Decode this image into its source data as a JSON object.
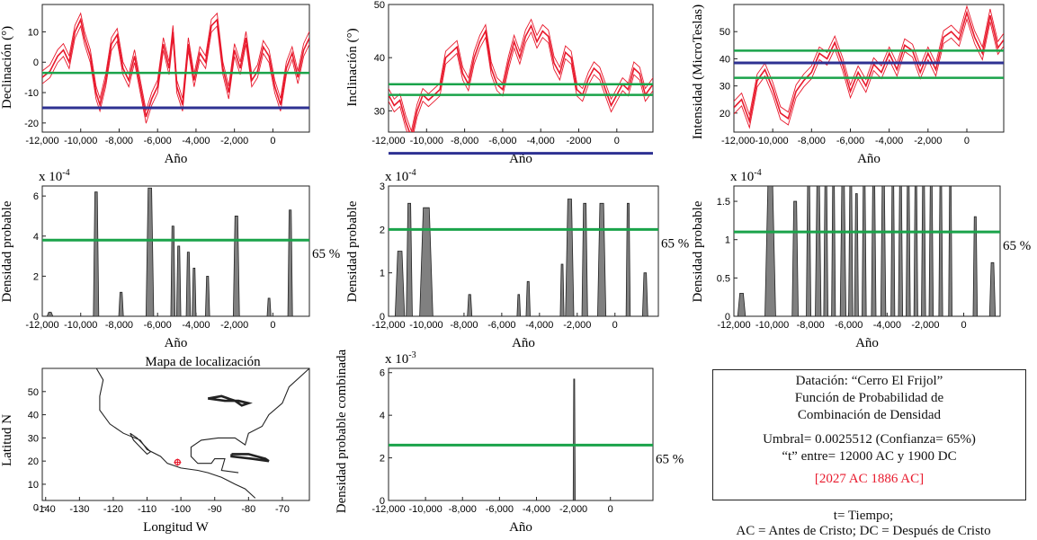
{
  "colors": {
    "red": "#e8192c",
    "green": "#1aa34a",
    "blue": "#2e3192",
    "gray": "#808080",
    "black": "#111111"
  },
  "xlabel": "Año",
  "chart_data": [
    {
      "id": "declinacion",
      "type": "line",
      "title": "",
      "xlabel": "Año",
      "ylabel": "Declinación (°)",
      "xlim": [
        -12000,
        1900
      ],
      "ylim": [
        -23,
        19
      ],
      "xticks": [
        -12000,
        -10000,
        -8000,
        -6000,
        -4000,
        -2000,
        0
      ],
      "xtick_labels": [
        "-12,000",
        "-10,000",
        "-8,000",
        "-6,000",
        "-4,000",
        "-2,000",
        "0"
      ],
      "yticks": [
        -20,
        -10,
        0,
        10
      ],
      "ytick_labels": [
        "-20",
        "-10",
        "0",
        "10"
      ],
      "hlines": [
        {
          "y": -3.5,
          "color": "green"
        },
        {
          "y": -15,
          "color": "blue"
        }
      ],
      "series": [
        {
          "name": "curva",
          "x": [
            -12000,
            -11600,
            -11200,
            -10900,
            -10600,
            -10300,
            -10000,
            -9800,
            -9500,
            -9200,
            -9000,
            -8700,
            -8400,
            -8100,
            -7800,
            -7500,
            -7200,
            -6900,
            -6600,
            -6300,
            -6000,
            -5700,
            -5400,
            -5200,
            -5000,
            -4700,
            -4400,
            -4100,
            -3800,
            -3500,
            -3200,
            -2900,
            -2600,
            -2300,
            -2000,
            -1700,
            -1400,
            -1100,
            -800,
            -500,
            -200,
            100,
            400,
            700,
            1000,
            1300,
            1600,
            1900
          ],
          "y": [
            -5,
            -3,
            2,
            4,
            0,
            10,
            14,
            8,
            2,
            -10,
            -14,
            -6,
            6,
            9,
            -2,
            -6,
            2,
            -8,
            -18,
            -12,
            -8,
            6,
            -2,
            10,
            -8,
            -14,
            6,
            -6,
            3,
            0,
            12,
            14,
            -2,
            -10,
            4,
            -2,
            8,
            -6,
            -3,
            5,
            2,
            -8,
            -14,
            -2,
            3,
            -5,
            4,
            8
          ]
        }
      ]
    },
    {
      "id": "inclinacion",
      "type": "line",
      "title": "",
      "xlabel": "Año",
      "ylabel": "Inclinación (°)",
      "xlim": [
        -12000,
        1900
      ],
      "ylim": [
        26,
        50
      ],
      "xticks": [
        -12000,
        -10000,
        -8000,
        -6000,
        -4000,
        -2000,
        0
      ],
      "xtick_labels": [
        "-12,000",
        "-10,000",
        "-8,000",
        "-6,000",
        "-4,000",
        "-2000",
        "0"
      ],
      "yticks": [
        30,
        40,
        50
      ],
      "ytick_labels": [
        "30",
        "40",
        "50"
      ],
      "hlines": [
        {
          "y": 35,
          "color": "green"
        },
        {
          "y": 22,
          "color": "blue"
        },
        {
          "y": 33,
          "color": "green"
        }
      ],
      "series": [
        {
          "name": "curva",
          "x": [
            -12000,
            -11700,
            -11400,
            -11100,
            -10800,
            -10500,
            -10200,
            -9900,
            -9600,
            -9300,
            -9000,
            -8700,
            -8400,
            -8100,
            -7800,
            -7500,
            -7200,
            -6900,
            -6600,
            -6300,
            -6000,
            -5700,
            -5400,
            -5100,
            -4800,
            -4500,
            -4200,
            -3900,
            -3600,
            -3300,
            -3000,
            -2700,
            -2400,
            -2100,
            -1800,
            -1500,
            -1200,
            -900,
            -600,
            -300,
            0,
            300,
            600,
            900,
            1200,
            1500,
            1900
          ],
          "y": [
            33,
            31,
            32,
            28,
            25,
            30,
            33,
            32,
            33,
            34,
            40,
            41,
            42,
            37,
            35,
            40,
            43,
            45,
            38,
            35,
            34,
            39,
            43,
            40,
            44,
            46,
            43,
            45,
            44,
            39,
            37,
            41,
            40,
            34,
            33,
            36,
            38,
            37,
            34,
            31,
            33,
            35,
            34,
            38,
            37,
            33,
            35
          ]
        }
      ]
    },
    {
      "id": "intensidad",
      "type": "line",
      "title": "",
      "xlabel": "Año",
      "ylabel": "Intensidad (MicroTeslas)",
      "xlim": [
        -12000,
        1900
      ],
      "ylim": [
        13,
        60
      ],
      "xticks": [
        -12000,
        -10000,
        -8000,
        -6000,
        -4000,
        -2000,
        0
      ],
      "xtick_labels": [
        "-12,000-10,000",
        "",
        "-8,000",
        "-6,000",
        "-4,000",
        "-2,000",
        "0"
      ],
      "yticks": [
        20,
        30,
        40,
        50
      ],
      "ytick_labels": [
        "20",
        "30",
        "40",
        "50"
      ],
      "hlines": [
        {
          "y": 43,
          "color": "green"
        },
        {
          "y": 38.5,
          "color": "blue"
        },
        {
          "y": 33,
          "color": "green"
        }
      ],
      "series": [
        {
          "name": "curva",
          "x": [
            -12000,
            -11600,
            -11200,
            -10800,
            -10400,
            -10000,
            -9600,
            -9200,
            -8800,
            -8400,
            -8000,
            -7600,
            -7200,
            -6800,
            -6400,
            -6000,
            -5600,
            -5200,
            -4800,
            -4400,
            -4000,
            -3600,
            -3200,
            -2800,
            -2400,
            -2000,
            -1600,
            -1200,
            -800,
            -400,
            0,
            400,
            800,
            1200,
            1600,
            1900
          ],
          "y": [
            22,
            25,
            17,
            32,
            36,
            29,
            20,
            18,
            28,
            32,
            35,
            42,
            40,
            46,
            38,
            28,
            35,
            30,
            38,
            35,
            42,
            36,
            45,
            43,
            35,
            42,
            36,
            48,
            50,
            47,
            57,
            48,
            42,
            56,
            44,
            47
          ]
        }
      ]
    },
    {
      "id": "densidad_declinacion",
      "type": "area",
      "xlabel": "Año",
      "ylabel": "Densidad probable",
      "scale": "x 10-4",
      "scale_base": "x 10",
      "scale_exp": "-4",
      "xlim": [
        -12000,
        1900
      ],
      "ylim": [
        0,
        6.5
      ],
      "xticks": [
        -12000,
        -10000,
        -8000,
        -6000,
        -4000,
        -2000,
        0
      ],
      "xtick_labels": [
        "-12,000",
        "-10,000",
        "-8,000",
        "-6,000",
        "-4,000",
        "-2,000",
        "0"
      ],
      "yticks": [
        0,
        2,
        4,
        6
      ],
      "ytick_labels": [
        "0",
        "2",
        "4",
        "6"
      ],
      "threshold": 3.8,
      "threshold_label": "65 %",
      "peaks": [
        {
          "center": -11600,
          "width": 150,
          "height": 0.2
        },
        {
          "center": -9200,
          "width": 140,
          "height": 6.2
        },
        {
          "center": -7900,
          "width": 120,
          "height": 1.2
        },
        {
          "center": -6400,
          "width": 200,
          "height": 6.4
        },
        {
          "center": -5200,
          "width": 110,
          "height": 4.5
        },
        {
          "center": -4900,
          "width": 110,
          "height": 3.5
        },
        {
          "center": -4400,
          "width": 110,
          "height": 3.2
        },
        {
          "center": -4100,
          "width": 100,
          "height": 2.4
        },
        {
          "center": -3400,
          "width": 110,
          "height": 2.0
        },
        {
          "center": -1900,
          "width": 160,
          "height": 5.0
        },
        {
          "center": -200,
          "width": 100,
          "height": 0.9
        },
        {
          "center": 900,
          "width": 120,
          "height": 5.3
        }
      ]
    },
    {
      "id": "densidad_inclinacion",
      "type": "area",
      "xlabel": "Año",
      "ylabel": "Densidad probable",
      "scale": "x 10-4",
      "scale_base": "x 10",
      "scale_exp": "-4",
      "xlim": [
        -12000,
        2300
      ],
      "ylim": [
        0,
        3
      ],
      "xticks": [
        -12000,
        -10000,
        -8000,
        -6000,
        -4000,
        -2000,
        0
      ],
      "xtick_labels": [
        "-12,000",
        "-10,000",
        "-8,000",
        "-6,000",
        "-4,000",
        "-2,000",
        "0"
      ],
      "yticks": [
        0,
        1,
        2,
        3
      ],
      "ytick_labels": [
        "0",
        "1",
        "2",
        "3"
      ],
      "threshold": 2.0,
      "threshold_label": "65 %",
      "peaks": [
        {
          "center": -11400,
          "width": 250,
          "height": 1.5
        },
        {
          "center": -10900,
          "width": 160,
          "height": 2.6
        },
        {
          "center": -10000,
          "width": 350,
          "height": 2.5
        },
        {
          "center": -7700,
          "width": 120,
          "height": 0.5
        },
        {
          "center": -5100,
          "width": 90,
          "height": 0.5
        },
        {
          "center": -4600,
          "width": 110,
          "height": 0.8
        },
        {
          "center": -2800,
          "width": 100,
          "height": 1.2
        },
        {
          "center": -2400,
          "width": 220,
          "height": 2.7
        },
        {
          "center": -1600,
          "width": 150,
          "height": 2.6
        },
        {
          "center": -700,
          "width": 220,
          "height": 2.6
        },
        {
          "center": 700,
          "width": 110,
          "height": 2.6
        },
        {
          "center": 1600,
          "width": 140,
          "height": 1.0
        }
      ]
    },
    {
      "id": "densidad_intensidad",
      "type": "area",
      "xlabel": "Año",
      "ylabel": "Densidad probable",
      "scale": "x 10-4",
      "scale_base": "x 10",
      "scale_exp": "-4",
      "xlim": [
        -12000,
        1900
      ],
      "ylim": [
        0,
        1.7
      ],
      "xticks": [
        -12000,
        -10000,
        -8000,
        -6000,
        -4000,
        -2000,
        0
      ],
      "xtick_labels": [
        "-12,000",
        "-10,000",
        "-8,000",
        "-6,000",
        "-4,000",
        "-2,000",
        "0"
      ],
      "yticks": [
        0,
        0.5,
        1,
        1.5
      ],
      "ytick_labels": [
        "0",
        "0.5",
        "1",
        "1.5"
      ],
      "threshold": 1.1,
      "threshold_label": "65 %",
      "peaks": [
        {
          "center": -11600,
          "width": 200,
          "height": 0.3
        },
        {
          "center": -10100,
          "width": 280,
          "height": 1.7
        },
        {
          "center": -8800,
          "width": 160,
          "height": 1.5
        },
        {
          "center": -8100,
          "width": 120,
          "height": 1.7
        },
        {
          "center": -7600,
          "width": 150,
          "height": 1.7
        },
        {
          "center": -7200,
          "width": 110,
          "height": 1.7
        },
        {
          "center": -6800,
          "width": 100,
          "height": 1.7
        },
        {
          "center": -6300,
          "width": 150,
          "height": 1.7
        },
        {
          "center": -5900,
          "width": 110,
          "height": 1.7
        },
        {
          "center": -5600,
          "width": 100,
          "height": 1.6
        },
        {
          "center": -5200,
          "width": 110,
          "height": 1.7
        },
        {
          "center": -4700,
          "width": 120,
          "height": 1.7
        },
        {
          "center": -4200,
          "width": 130,
          "height": 1.7
        },
        {
          "center": -3700,
          "width": 100,
          "height": 1.7
        },
        {
          "center": -3300,
          "width": 110,
          "height": 1.7
        },
        {
          "center": -2900,
          "width": 110,
          "height": 1.7
        },
        {
          "center": -2500,
          "width": 100,
          "height": 1.7
        },
        {
          "center": -2100,
          "width": 110,
          "height": 1.7
        },
        {
          "center": -1700,
          "width": 110,
          "height": 1.7
        },
        {
          "center": -1200,
          "width": 100,
          "height": 1.7
        },
        {
          "center": -700,
          "width": 90,
          "height": 1.7
        },
        {
          "center": 600,
          "width": 110,
          "height": 1.3
        },
        {
          "center": 1500,
          "width": 150,
          "height": 0.7
        }
      ]
    },
    {
      "id": "densidad_combinada",
      "type": "area",
      "xlabel": "Año",
      "ylabel": "Densidad probable combinada",
      "scale": "x 10-3",
      "scale_base": "x 10",
      "scale_exp": "-3",
      "xlim": [
        -12000,
        2300
      ],
      "ylim": [
        0,
        6.2
      ],
      "xticks": [
        -12000,
        -10000,
        -8000,
        -6000,
        -4000,
        -2000,
        0
      ],
      "xtick_labels": [
        "-12,000",
        "-10,000",
        "-8,000",
        "-6,000",
        "-4,000",
        "-2,000",
        "0"
      ],
      "yticks": [
        0,
        2,
        4,
        6
      ],
      "ytick_labels": [
        "0",
        "2",
        "4",
        "6"
      ],
      "threshold": 2.6,
      "threshold_label": "65 %",
      "peaks": [
        {
          "center": -1960,
          "width": 55,
          "height": 5.7
        }
      ]
    },
    {
      "id": "mapa",
      "type": "map",
      "title": "Mapa de localización",
      "xlabel": "Longitud W",
      "ylabel": "Latitud N",
      "xlim": [
        -141,
        -62
      ],
      "ylim": [
        3,
        60
      ],
      "xticks": [
        -140,
        -130,
        -120,
        -110,
        -100,
        -90,
        -80,
        -70
      ],
      "xtick_labels": [
        "-140",
        "-130",
        "-120",
        "-110",
        "-100",
        "-90",
        "-80",
        "-70"
      ],
      "yticks": [
        0,
        10,
        20,
        30,
        40,
        50
      ],
      "ytick_labels": [
        "0",
        "10",
        "20",
        "30",
        "40",
        "50"
      ],
      "site": {
        "lon": -101,
        "lat": 19.5
      }
    }
  ],
  "info": {
    "line1": "Datación: “Cerro El Frijol”",
    "line2": "Función de Probabilidad de",
    "line3": "Combinación de Densidad",
    "line4": "Umbral= 0.0025512 (Confianza= 65%)",
    "line5": "“t” entre= 12000 AC y 1900 DC",
    "result": "[2027 AC  1886 AC]"
  },
  "legend": {
    "line1": "t= Tiempo;",
    "line2": "AC = Antes de Cristo; DC = Después de Cristo"
  }
}
